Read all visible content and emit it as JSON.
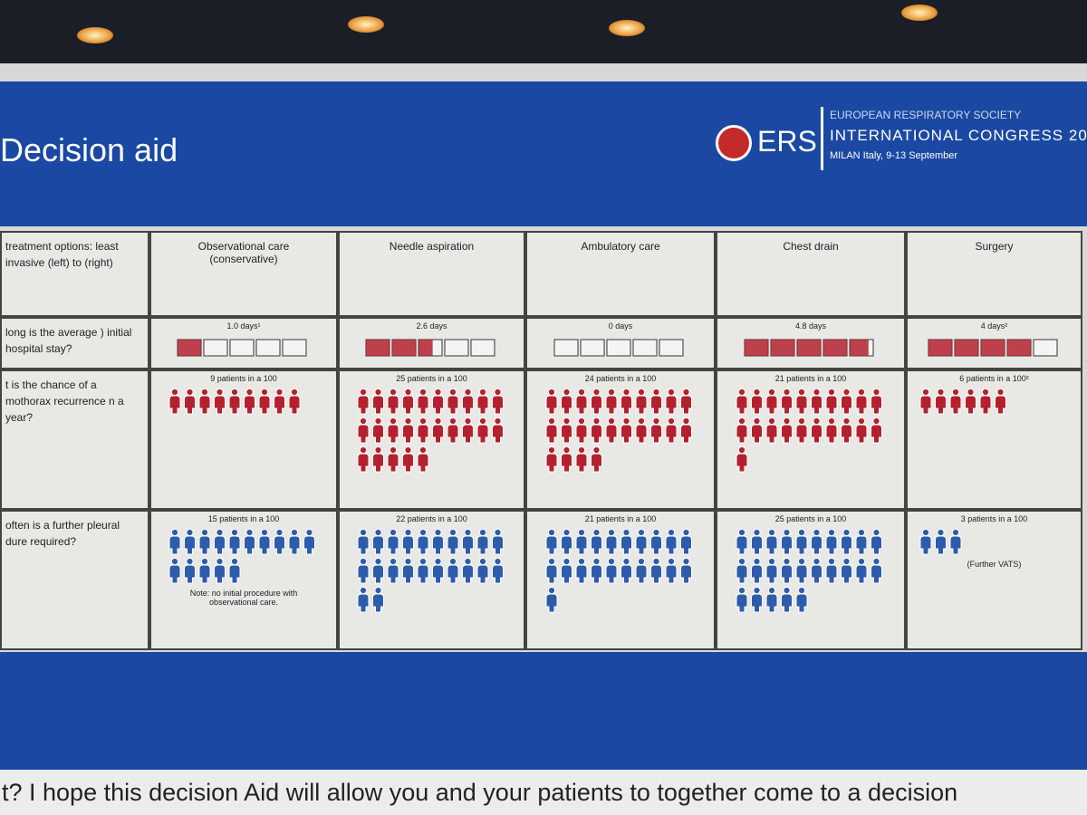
{
  "header": {
    "title": "Decision aid",
    "logo": "ERS",
    "org": "EUROPEAN RESPIRATORY SOCIETY",
    "congress": "INTERNATIONAL CONGRESS 20",
    "venue": "MILAN Italy, 9-13 September"
  },
  "table": {
    "row_headers": [
      "treatment options: least invasive (left) to (right)",
      "long is the average ) initial hospital stay?",
      "t is the chance of a mothorax recurrence n a year?",
      "often is a further pleural dure required?"
    ],
    "columns": [
      {
        "name": "Observational care (conservative)",
        "stay_label": "1.0 days¹",
        "stay_days": 1.0,
        "recurrence_label": "9 patients in a 100",
        "recurrence_count": 9,
        "procedure_label": "15 patients in a 100",
        "procedure_count": 15,
        "procedure_note": "Note: no initial procedure with observational care."
      },
      {
        "name": "Needle aspiration",
        "stay_label": "2.6 days",
        "stay_days": 2.6,
        "recurrence_label": "25 patients in a 100",
        "recurrence_count": 25,
        "procedure_label": "22 patients in a 100",
        "procedure_count": 22
      },
      {
        "name": "Ambulatory care",
        "stay_label": "0 days",
        "stay_days": 0,
        "recurrence_label": "24 patients in a 100",
        "recurrence_count": 24,
        "procedure_label": "21 patients in a 100",
        "procedure_count": 21
      },
      {
        "name": "Chest drain",
        "stay_label": "4.8 days",
        "stay_days": 4.8,
        "recurrence_label": "21 patients in a 100",
        "recurrence_count": 21,
        "procedure_label": "25 patients in a 100",
        "procedure_count": 25
      },
      {
        "name": "Surgery",
        "stay_label": "4 days²",
        "stay_days": 4,
        "recurrence_label": "6 patients in a 100²",
        "recurrence_count": 6,
        "procedure_label": "3 patients in a 100",
        "procedure_count": 3,
        "procedure_note": "(Further VATS)"
      }
    ]
  },
  "caption": "t? I hope this decision Aid will allow you and your patients to together come to a decision"
}
